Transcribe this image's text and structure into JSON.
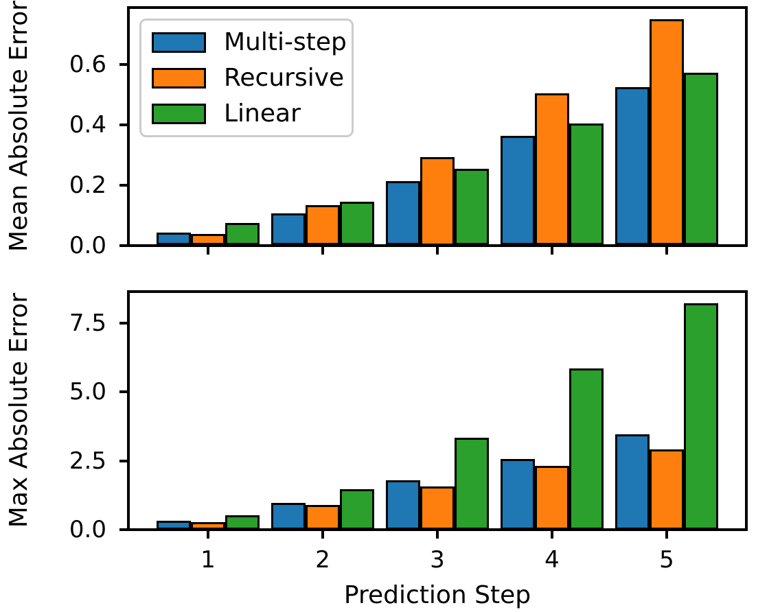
{
  "figure": {
    "background": "#ffffff",
    "text_color": "#000000",
    "bar_edge_color": "#000000",
    "legend_border_color": "#cccccc"
  },
  "chart_data": [
    {
      "type": "bar",
      "title": "",
      "xlabel": "",
      "ylabel": "Mean Absolute Error",
      "categories": [
        1,
        2,
        3,
        4,
        5
      ],
      "series": [
        {
          "name": "Multi-step",
          "color": "#1f77b4",
          "values": [
            0.043,
            0.105,
            0.214,
            0.363,
            0.525
          ]
        },
        {
          "name": "Recursive",
          "color": "#ff7f0e",
          "values": [
            0.038,
            0.133,
            0.293,
            0.504,
            0.752
          ]
        },
        {
          "name": "Linear",
          "color": "#2ca02c",
          "values": [
            0.075,
            0.145,
            0.255,
            0.405,
            0.574
          ]
        }
      ],
      "ylim": [
        0,
        0.79
      ],
      "xlim": [
        0.305,
        5.695
      ],
      "bar_width": 0.3,
      "yticks": [
        0.0,
        0.2,
        0.4,
        0.6
      ],
      "ytick_labels": [
        "0.0",
        "0.2",
        "0.4",
        "0.6"
      ],
      "grid": false,
      "legend": {
        "position": "upper-left",
        "entries": [
          "Multi-step",
          "Recursive",
          "Linear"
        ]
      }
    },
    {
      "type": "bar",
      "title": "",
      "xlabel": "Prediction Step",
      "ylabel": "Max Absolute Error",
      "categories": [
        1,
        2,
        3,
        4,
        5
      ],
      "xtick_labels": [
        "1",
        "2",
        "3",
        "4",
        "5"
      ],
      "series": [
        {
          "name": "Multi-step",
          "color": "#1f77b4",
          "values": [
            0.33,
            0.98,
            1.79,
            2.56,
            3.47
          ]
        },
        {
          "name": "Recursive",
          "color": "#ff7f0e",
          "values": [
            0.27,
            0.91,
            1.58,
            2.31,
            2.91
          ]
        },
        {
          "name": "Linear",
          "color": "#2ca02c",
          "values": [
            0.53,
            1.46,
            3.33,
            5.86,
            8.22
          ]
        }
      ],
      "ylim": [
        0,
        8.65
      ],
      "xlim": [
        0.305,
        5.695
      ],
      "bar_width": 0.3,
      "yticks": [
        0.0,
        2.5,
        5.0,
        7.5
      ],
      "ytick_labels": [
        "0.0",
        "2.5",
        "5.0",
        "7.5"
      ],
      "grid": false,
      "legend": null
    }
  ]
}
